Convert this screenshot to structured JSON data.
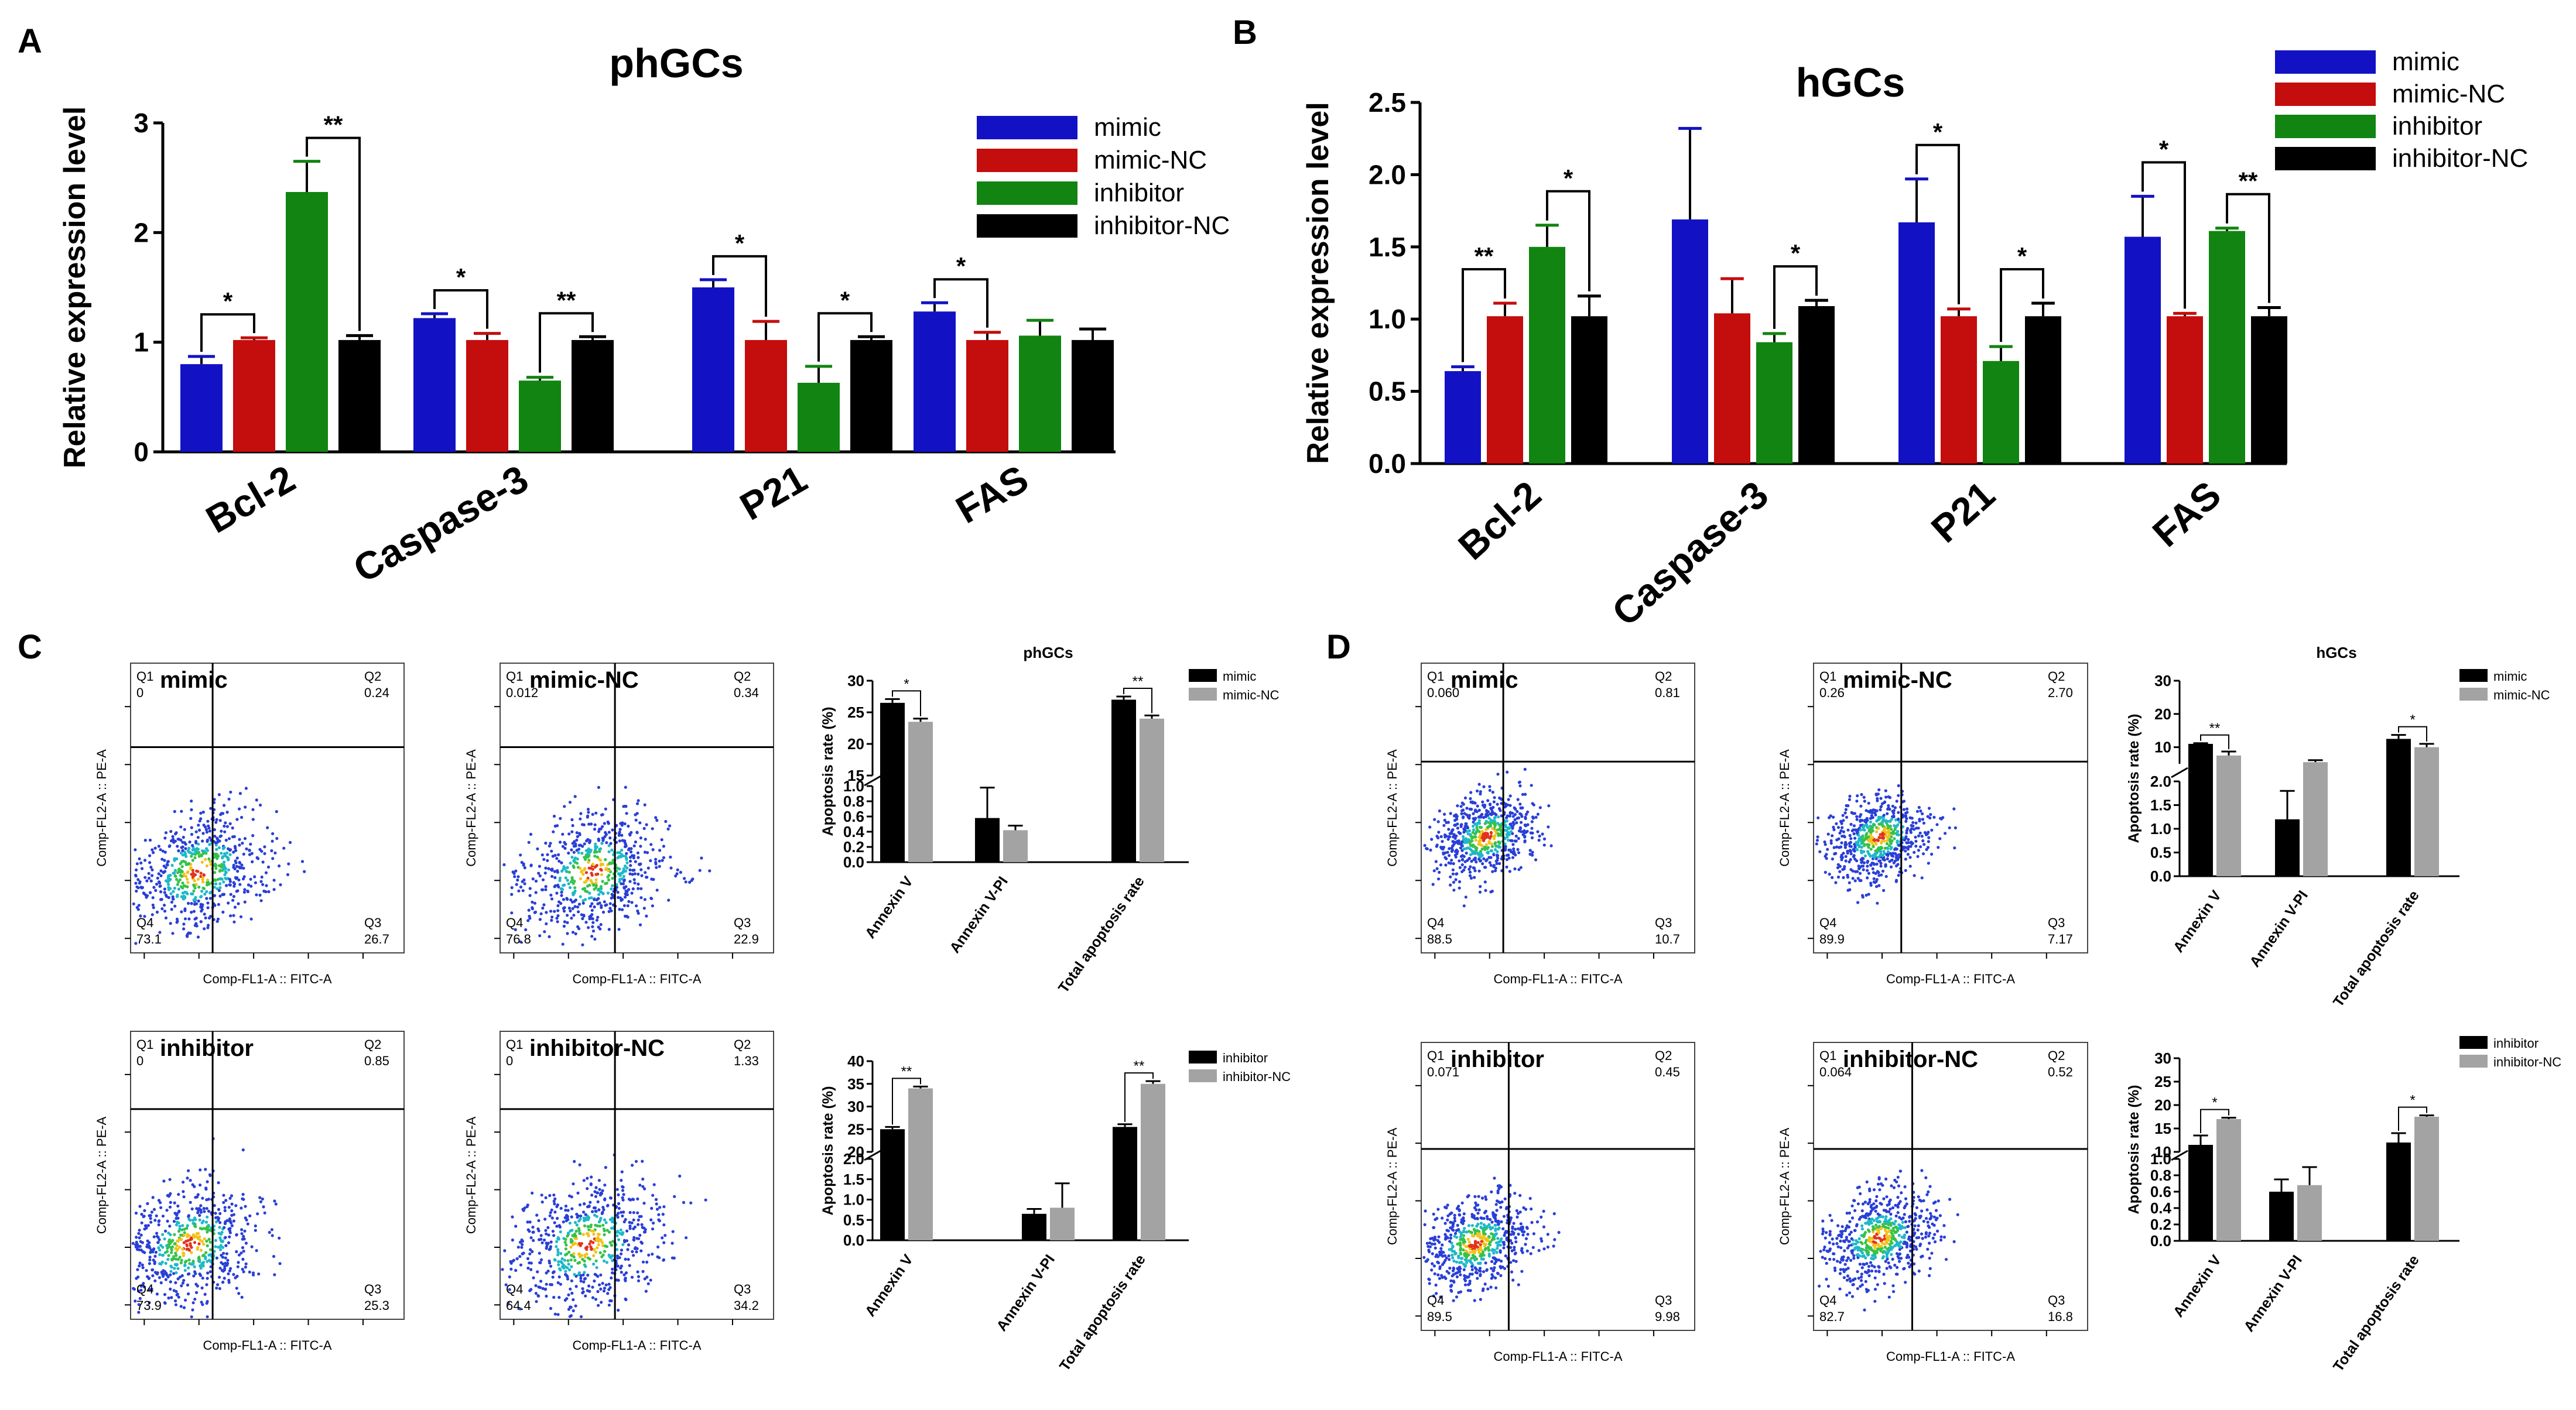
{
  "panel_labels": {
    "A": "A",
    "B": "B",
    "C": "C",
    "D": "D"
  },
  "colors": {
    "mimic": "#1212c4",
    "mimic_nc": "#c40d0d",
    "inhibitor": "#118411",
    "inhibitor_nc": "#000000",
    "black": "#000000",
    "gray": "#a3a3a3"
  },
  "chart_data": [
    {
      "id": "A",
      "type": "bar",
      "title": "phGCs",
      "xlabel": "",
      "ylabel": "Relative expression level",
      "ylim": [
        0,
        3
      ],
      "yticks": [
        0,
        1,
        2,
        3
      ],
      "tick_labels": [
        "0",
        "1",
        "2",
        "3"
      ],
      "categories": [
        "Bcl-2",
        "Caspase-3",
        "P21",
        "FAS"
      ],
      "series": [
        {
          "name": "mimic",
          "values": [
            0.8,
            1.22,
            1.5,
            1.28
          ],
          "errors": [
            0.07,
            0.04,
            0.07,
            0.08
          ]
        },
        {
          "name": "mimic-NC",
          "values": [
            1.02,
            1.02,
            1.02,
            1.02
          ],
          "errors": [
            0.02,
            0.06,
            0.17,
            0.07
          ]
        },
        {
          "name": "inhibitor",
          "values": [
            2.37,
            0.65,
            0.63,
            1.06
          ],
          "errors": [
            0.28,
            0.03,
            0.15,
            0.14
          ]
        },
        {
          "name": "inhibitor-NC",
          "values": [
            1.02,
            1.02,
            1.02,
            1.02
          ],
          "errors": [
            0.04,
            0.03,
            0.03,
            0.1
          ]
        }
      ],
      "significance": [
        {
          "category": 0,
          "from": 0,
          "to": 1,
          "label": "*"
        },
        {
          "category": 0,
          "from": 2,
          "to": 3,
          "label": "**"
        },
        {
          "category": 1,
          "from": 0,
          "to": 1,
          "label": "*"
        },
        {
          "category": 1,
          "from": 2,
          "to": 3,
          "label": "**"
        },
        {
          "category": 2,
          "from": 0,
          "to": 1,
          "label": "*"
        },
        {
          "category": 2,
          "from": 2,
          "to": 3,
          "label": "*"
        },
        {
          "category": 3,
          "from": 0,
          "to": 1,
          "label": "*"
        }
      ],
      "legend": [
        "mimic",
        "mimic-NC",
        "inhibitor",
        "inhibitor-NC"
      ]
    },
    {
      "id": "B",
      "type": "bar",
      "title": "hGCs",
      "xlabel": "",
      "ylabel": "Relative expression level",
      "ylim": [
        0,
        2.5
      ],
      "yticks": [
        0,
        0.5,
        1,
        1.5,
        2,
        2.5
      ],
      "tick_labels": [
        "0.0",
        "0.5",
        "1.0",
        "1.5",
        "2.0",
        "2.5"
      ],
      "categories": [
        "Bcl-2",
        "Caspase-3",
        "P21",
        "FAS"
      ],
      "series": [
        {
          "name": "mimic",
          "values": [
            0.64,
            1.69,
            1.67,
            1.57
          ],
          "errors": [
            0.03,
            0.63,
            0.3,
            0.28
          ]
        },
        {
          "name": "mimic-NC",
          "values": [
            1.02,
            1.04,
            1.02,
            1.02
          ],
          "errors": [
            0.09,
            0.24,
            0.05,
            0.02
          ]
        },
        {
          "name": "inhibitor",
          "values": [
            1.5,
            0.84,
            0.71,
            1.61
          ],
          "errors": [
            0.15,
            0.06,
            0.1,
            0.02
          ]
        },
        {
          "name": "inhibitor-NC",
          "values": [
            1.02,
            1.09,
            1.02,
            1.02
          ],
          "errors": [
            0.14,
            0.04,
            0.09,
            0.06
          ]
        }
      ],
      "significance": [
        {
          "category": 0,
          "from": 0,
          "to": 1,
          "label": "**"
        },
        {
          "category": 0,
          "from": 2,
          "to": 3,
          "label": "*"
        },
        {
          "category": 1,
          "from": 2,
          "to": 3,
          "label": "*"
        },
        {
          "category": 2,
          "from": 0,
          "to": 1,
          "label": "*"
        },
        {
          "category": 2,
          "from": 2,
          "to": 3,
          "label": "*"
        },
        {
          "category": 3,
          "from": 0,
          "to": 1,
          "label": "*"
        },
        {
          "category": 3,
          "from": 2,
          "to": 3,
          "label": "**"
        }
      ],
      "legend": [
        "mimic",
        "mimic-NC",
        "inhibitor",
        "inhibitor-NC"
      ]
    },
    {
      "id": "C-top",
      "type": "bar",
      "title": "phGCs",
      "ylabel": "Apoptosis rate (%)",
      "categories": [
        "Annexin V",
        "Annexin V-PI",
        "Total apoptosis rate"
      ],
      "broken_axis": {
        "lower": [
          0,
          1.0
        ],
        "upper": [
          15,
          30
        ]
      },
      "lower_ticks": [
        "0.0",
        "0.2",
        "0.4",
        "0.6",
        "0.8",
        "1.0"
      ],
      "upper_ticks": [
        "15",
        "20",
        "25",
        "30"
      ],
      "series": [
        {
          "name": "mimic",
          "values": [
            26.5,
            0.58,
            27.0
          ],
          "errors": [
            0.6,
            0.4,
            0.5
          ]
        },
        {
          "name": "mimic-NC",
          "values": [
            23.5,
            0.42,
            24.0
          ],
          "errors": [
            0.5,
            0.06,
            0.5
          ]
        }
      ],
      "significance": [
        {
          "category": 0,
          "label": "*"
        },
        {
          "category": 2,
          "label": "**"
        }
      ],
      "legend": [
        "mimic",
        "mimic-NC"
      ]
    },
    {
      "id": "C-bottom",
      "type": "bar",
      "title": "",
      "ylabel": "Apoptosis rate (%)",
      "categories": [
        "Annexin V",
        "Annexin V-PI",
        "Total apoptosis rate"
      ],
      "broken_axis": {
        "lower": [
          0,
          2.0
        ],
        "upper": [
          20,
          40
        ]
      },
      "lower_ticks": [
        "0.0",
        "0.5",
        "1.0",
        "1.5",
        "2.0"
      ],
      "upper_ticks": [
        "20",
        "25",
        "30",
        "35",
        "40"
      ],
      "series": [
        {
          "name": "inhibitor",
          "values": [
            25.0,
            0.65,
            25.5
          ],
          "errors": [
            0.5,
            0.12,
            0.6
          ]
        },
        {
          "name": "inhibitor-NC",
          "values": [
            34.0,
            0.8,
            35.0
          ],
          "errors": [
            0.4,
            0.6,
            0.6
          ]
        }
      ],
      "significance": [
        {
          "category": 0,
          "label": "**"
        },
        {
          "category": 2,
          "label": "**"
        }
      ],
      "legend": [
        "inhibitor",
        "inhibitor-NC"
      ]
    },
    {
      "id": "D-top",
      "type": "bar",
      "title": "hGCs",
      "ylabel": "Apoptosis rate (%)",
      "categories": [
        "Annexin V",
        "Annexin V-PI",
        "Total apoptosis rate"
      ],
      "broken_axis": {
        "lower": [
          0,
          2.0
        ],
        "upper": [
          5,
          30
        ]
      },
      "lower_ticks": [
        "0.0",
        "0.5",
        "1.0",
        "1.5",
        "2.0"
      ],
      "upper_ticks": [
        "10",
        "20",
        "30"
      ],
      "series": [
        {
          "name": "mimic",
          "values": [
            11.0,
            1.2,
            12.5
          ],
          "errors": [
            0.2,
            0.6,
            1.2
          ]
        },
        {
          "name": "mimic-NC",
          "values": [
            7.5,
            5.5,
            10.0
          ],
          "errors": [
            1.2,
            0.6,
            1.0
          ]
        }
      ],
      "significance": [
        {
          "category": 0,
          "label": "**"
        },
        {
          "category": 2,
          "label": "*"
        }
      ],
      "legend": [
        "mimic",
        "mimic-NC"
      ]
    },
    {
      "id": "D-bottom",
      "type": "bar",
      "title": "",
      "ylabel": "Apoptosis rate (%)",
      "categories": [
        "Annexin V",
        "Annexin V-PI",
        "Total apoptosis rate"
      ],
      "broken_axis": {
        "lower": [
          0,
          1.0
        ],
        "upper": [
          10,
          30
        ]
      },
      "lower_ticks": [
        "0.0",
        "0.2",
        "0.4",
        "0.6",
        "0.8",
        "1.0"
      ],
      "upper_ticks": [
        "10",
        "15",
        "20",
        "25",
        "30"
      ],
      "series": [
        {
          "name": "inhibitor",
          "values": [
            11.5,
            0.6,
            12.0
          ],
          "errors": [
            2.0,
            0.15,
            2.0
          ]
        },
        {
          "name": "inhibitor-NC",
          "values": [
            17.0,
            0.68,
            17.5
          ],
          "errors": [
            0.3,
            0.22,
            0.3
          ]
        }
      ],
      "significance": [
        {
          "category": 0,
          "label": "*"
        },
        {
          "category": 2,
          "label": "*"
        }
      ],
      "legend": [
        "inhibitor",
        "inhibitor-NC"
      ]
    },
    {
      "id": "flow",
      "type": "scatter",
      "x_axis_label": "Comp-FL1-A :: FITC-A",
      "y_axis_label": "Comp-FL2-A :: PE-A",
      "quadrant_names": [
        "Q1",
        "Q2",
        "Q3",
        "Q4"
      ],
      "panels": [
        {
          "name": "mimic",
          "q1": "0",
          "q2": "0.24",
          "q3": "26.7",
          "q4": "73.1"
        },
        {
          "name": "mimic-NC",
          "q1": "0.012",
          "q2": "0.34",
          "q3": "22.9",
          "q4": "76.8"
        },
        {
          "name": "inhibitor",
          "q1": "0",
          "q2": "0.85",
          "q3": "25.3",
          "q4": "73.9"
        },
        {
          "name": "inhibitor-NC",
          "q1": "0",
          "q2": "1.33",
          "q3": "34.2",
          "q4": "64.4"
        },
        {
          "name": "mimic",
          "q1": "0.060",
          "q2": "0.81",
          "q3": "10.7",
          "q4": "88.5"
        },
        {
          "name": "mimic-NC",
          "q1": "0.26",
          "q2": "2.70",
          "q3": "7.17",
          "q4": "89.9"
        },
        {
          "name": "inhibitor",
          "q1": "0.071",
          "q2": "0.45",
          "q3": "9.98",
          "q4": "89.5"
        },
        {
          "name": "inhibitor-NC",
          "q1": "0.064",
          "q2": "0.52",
          "q3": "16.8",
          "q4": "82.7"
        }
      ]
    }
  ]
}
